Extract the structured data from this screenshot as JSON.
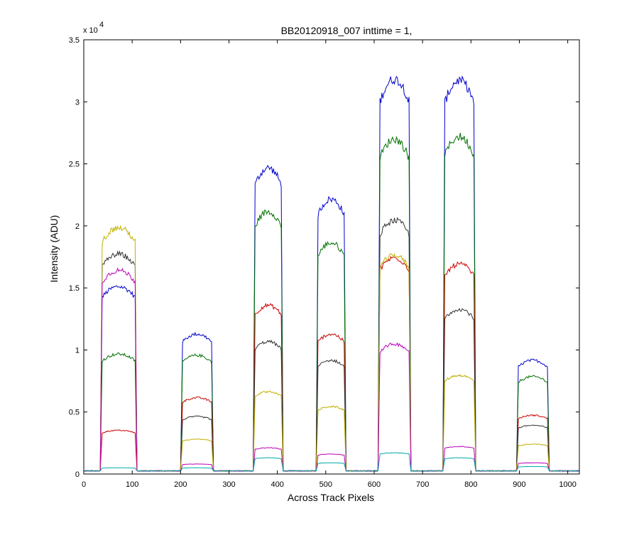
{
  "chart_data": {
    "type": "line",
    "title": "BB20120918_007 inttime = 1,",
    "xlabel": "Across Track Pixels",
    "ylabel": "Intensity (ADU)",
    "y_exponent_label": "x 10",
    "y_exponent_power": "4",
    "xlim": [
      0,
      1024
    ],
    "ylim": [
      0,
      35000
    ],
    "xticks": [
      0,
      100,
      200,
      300,
      400,
      500,
      600,
      700,
      800,
      900,
      1000
    ],
    "xtick_labels": [
      "0",
      "100",
      "200",
      "300",
      "400",
      "500",
      "600",
      "700",
      "800",
      "900",
      "1000"
    ],
    "yticks": [
      0,
      5000,
      10000,
      15000,
      20000,
      25000,
      30000,
      35000
    ],
    "ytick_labels": [
      "0",
      "0.5",
      "1",
      "1.5",
      "2",
      "2.5",
      "3",
      "3.5"
    ],
    "grid": false,
    "legend": "none",
    "background": 250,
    "regions": [
      {
        "x_start": 38,
        "x_end": 106
      },
      {
        "x_start": 204,
        "x_end": 264
      },
      {
        "x_start": 354,
        "x_end": 408
      },
      {
        "x_start": 484,
        "x_end": 538
      },
      {
        "x_start": 612,
        "x_end": 672
      },
      {
        "x_start": 746,
        "x_end": 806
      },
      {
        "x_start": 898,
        "x_end": 958
      }
    ],
    "series": [
      {
        "color": "#0000cc",
        "levels": [
          15000,
          11200,
          24500,
          22000,
          31600,
          31500,
          9100
        ]
      },
      {
        "color": "#007000",
        "levels": [
          9600,
          9500,
          21000,
          18500,
          26800,
          27000,
          7800
        ]
      },
      {
        "color": "#cc0000",
        "levels": [
          3500,
          6100,
          13500,
          11200,
          17300,
          16800,
          4700
        ]
      },
      {
        "color": "#333333",
        "levels": [
          17600,
          4600,
          10600,
          9100,
          20300,
          13200,
          3900
        ]
      },
      {
        "color": "#c0b000",
        "levels": [
          19700,
          2800,
          6600,
          5400,
          17500,
          7900,
          2400
        ]
      },
      {
        "color": "#bb00bb",
        "levels": [
          16300,
          800,
          2100,
          1600,
          10400,
          2200,
          900
        ]
      },
      {
        "color": "#00aaaa",
        "levels": [
          500,
          500,
          1300,
          900,
          1700,
          1300,
          600
        ]
      }
    ]
  }
}
